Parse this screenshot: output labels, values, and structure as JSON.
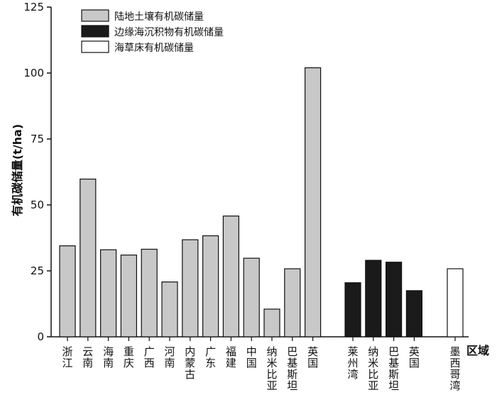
{
  "chart_data": {
    "type": "bar",
    "ylabel": "有机碳储量(t/ha)",
    "xlabel": "区域",
    "ylim": [
      0,
      125
    ],
    "yticks": [
      0,
      25,
      50,
      75,
      100,
      125
    ],
    "grid": false,
    "legend_position": "top-left",
    "series": [
      {
        "name": "陆地土壤有机碳储量",
        "color": "#c8c8c8",
        "categories": [
          "浙江",
          "云南",
          "海南",
          "重庆",
          "广西",
          "河南",
          "内蒙古",
          "广东",
          "福建",
          "中国",
          "纳米比亚",
          "巴基斯坦",
          "英国"
        ],
        "values": [
          34.5,
          59.8,
          33,
          31,
          33.2,
          20.8,
          36.8,
          38.3,
          45.8,
          29.8,
          10.5,
          25.8,
          102
        ]
      },
      {
        "name": "边缘海沉积物有机碳储量",
        "color": "#1a1a1a",
        "categories": [
          "莱州湾",
          "纳米比亚",
          "巴基斯坦",
          "英国"
        ],
        "values": [
          20.5,
          29,
          28.3,
          17.5
        ]
      },
      {
        "name": "海草床有机碳储量",
        "color": "#ffffff",
        "categories": [
          "墨西哥湾"
        ],
        "values": [
          25.8
        ]
      }
    ]
  }
}
